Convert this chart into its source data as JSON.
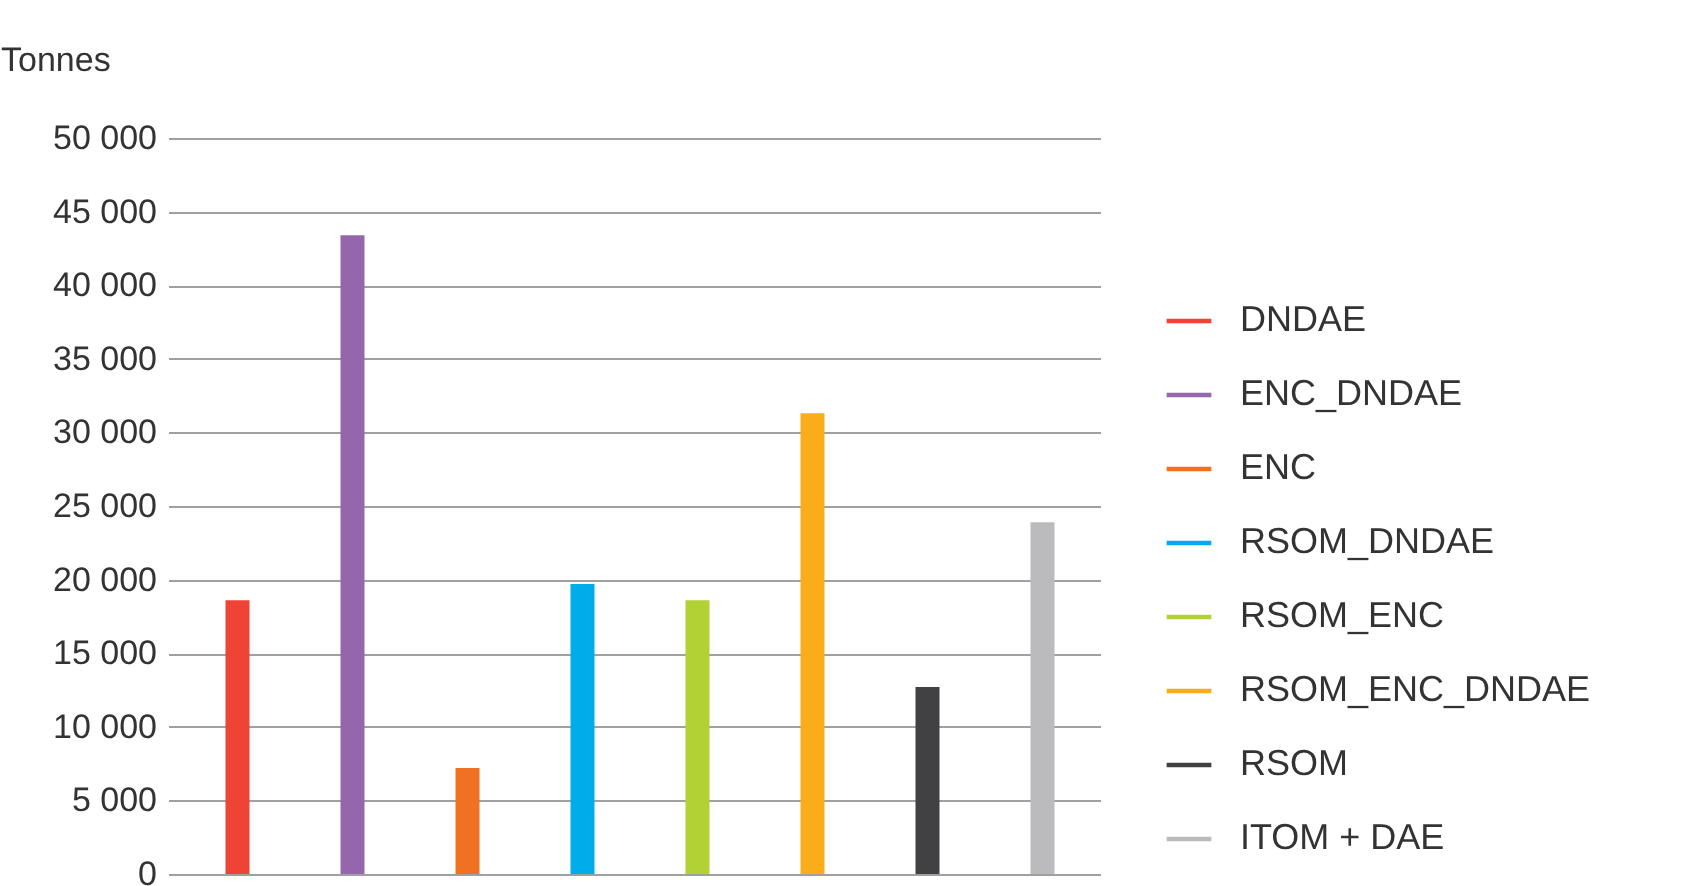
{
  "chart_data": {
    "type": "bar",
    "ylabel": "Tonnes",
    "categories": [
      null,
      null,
      null,
      null,
      null,
      null,
      null,
      null
    ],
    "series": [
      {
        "name": "DNDAE",
        "color": "#ee4335",
        "values": [
          18600,
          null,
          null,
          null,
          null,
          null,
          null,
          null
        ]
      },
      {
        "name": "ENC_DNDAE",
        "color": "#9566ab",
        "values": [
          null,
          43400,
          null,
          null,
          null,
          null,
          null,
          null
        ]
      },
      {
        "name": "ENC",
        "color": "#f07122",
        "values": [
          null,
          null,
          7200,
          null,
          null,
          null,
          null,
          null
        ]
      },
      {
        "name": "RSOM_DNDAE",
        "color": "#00adeb",
        "values": [
          null,
          null,
          null,
          19700,
          null,
          null,
          null,
          null
        ]
      },
      {
        "name": "RSOM_ENC",
        "color": "#b1d135",
        "values": [
          null,
          null,
          null,
          null,
          18600,
          null,
          null,
          null
        ]
      },
      {
        "name": "RSOM_ENC_DNDAE",
        "color": "#f9ad1a",
        "values": [
          null,
          null,
          null,
          null,
          null,
          31300,
          null,
          null
        ]
      },
      {
        "name": "RSOM",
        "color": "#414143",
        "values": [
          null,
          null,
          null,
          null,
          null,
          null,
          12700,
          null
        ]
      },
      {
        "name": "ITOM + DAE",
        "color": "#bbbbbd",
        "values": [
          null,
          null,
          null,
          null,
          null,
          null,
          null,
          23900
        ]
      }
    ],
    "ylim": [
      0,
      50000
    ],
    "yticks": [
      {
        "value": 0,
        "label": "0"
      },
      {
        "value": 5000,
        "label": "5 000"
      },
      {
        "value": 10000,
        "label": "10 000"
      },
      {
        "value": 15000,
        "label": "15 000"
      },
      {
        "value": 20000,
        "label": "20 000"
      },
      {
        "value": 25000,
        "label": "25 000"
      },
      {
        "value": 30000,
        "label": "30 000"
      },
      {
        "value": 35000,
        "label": "35 000"
      },
      {
        "value": 40000,
        "label": "40 000"
      },
      {
        "value": 45000,
        "label": "45 000"
      },
      {
        "value": 50000,
        "label": "50 000"
      }
    ],
    "grid": "y",
    "legend": "right",
    "tick_labels": "y"
  }
}
